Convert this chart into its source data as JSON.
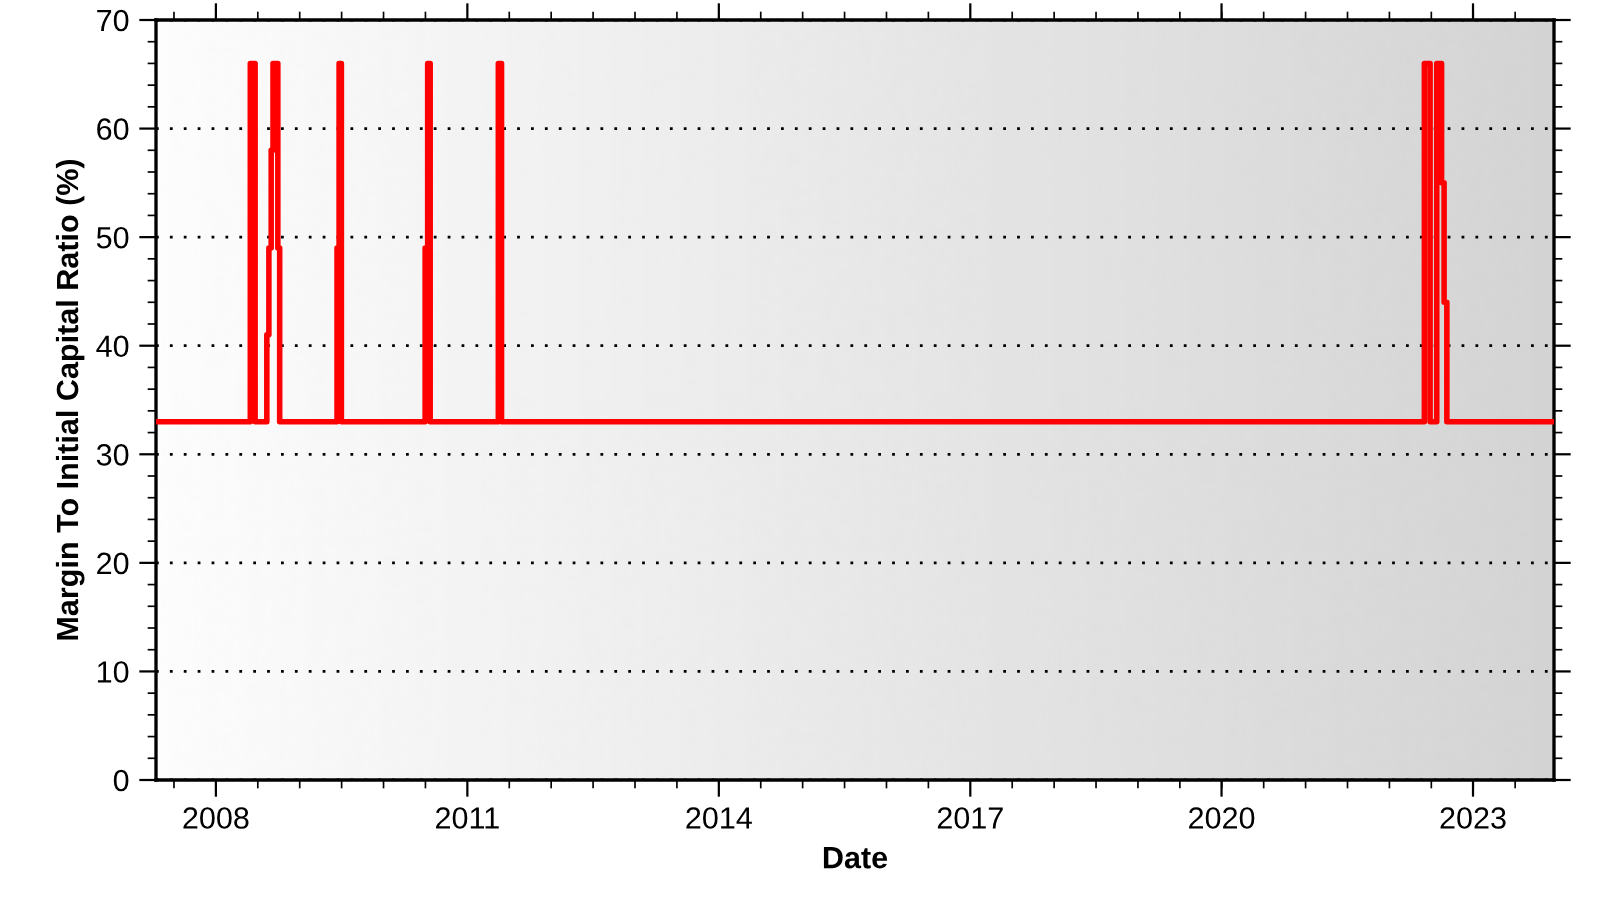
{
  "chart_data": {
    "type": "step",
    "xlabel": "Date",
    "ylabel": "Margin To Initial Capital Ratio (%)",
    "x": [
      "2007-04-15",
      "2008-05-30",
      "2008-06-20",
      "2008-08-10",
      "2008-08-19",
      "2008-08-29",
      "2008-09-06",
      "2008-09-27",
      "2008-10-05",
      "2009-06-12",
      "2009-06-21",
      "2009-07-01",
      "2010-07-01",
      "2010-07-12",
      "2010-07-23",
      "2011-05-16",
      "2011-05-30",
      "2022-06-03",
      "2022-06-28",
      "2022-07-27",
      "2022-08-17",
      "2022-08-28",
      "2022-09-09",
      "2023-12-20"
    ],
    "series": [
      {
        "color": "#ff0000",
        "values": [
          33,
          66,
          33,
          41,
          49,
          58,
          66,
          49,
          33,
          49,
          66,
          33,
          49,
          66,
          33,
          66,
          33,
          66,
          33,
          66,
          55,
          44,
          33,
          33
        ]
      }
    ],
    "xlim": [
      "2007-04-15",
      "2023-12-20"
    ],
    "xticks": [
      "2008",
      "2011",
      "2014",
      "2017",
      "2020",
      "2023"
    ],
    "ylim": [
      0,
      70
    ],
    "yticks": [
      0,
      10,
      20,
      30,
      40,
      50,
      60,
      70
    ],
    "grid": "y",
    "legend": false
  }
}
